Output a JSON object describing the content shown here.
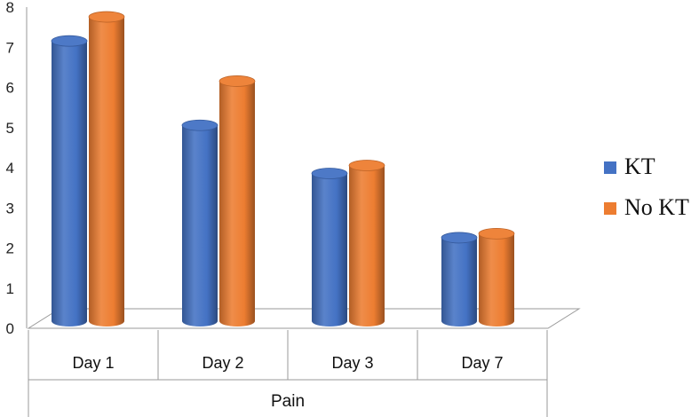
{
  "chart_data": {
    "type": "bar",
    "title": "",
    "xlabel": "Pain",
    "ylabel": "",
    "categories": [
      "Day 1",
      "Day 2",
      "Day 3",
      "Day 7"
    ],
    "series": [
      {
        "name": "KT",
        "values": [
          7.2,
          5.1,
          3.9,
          2.3
        ],
        "color": "#4472C4"
      },
      {
        "name": "No KT",
        "values": [
          7.8,
          6.2,
          4.1,
          2.4
        ],
        "color": "#ED7D31"
      }
    ],
    "ylim": [
      0,
      8
    ],
    "yticks": [
      0,
      1,
      2,
      3,
      4,
      5,
      6,
      7,
      8
    ],
    "legend_position": "right",
    "grid": false,
    "style": "3d-cylinder"
  }
}
